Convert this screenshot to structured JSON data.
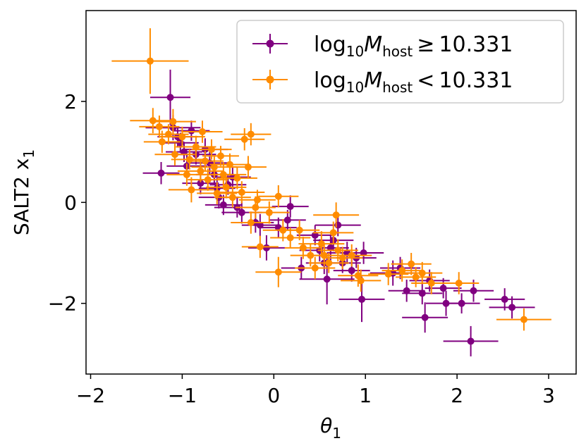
{
  "chart_data": {
    "type": "scatter",
    "title": "",
    "xlabel": "θ",
    "xlabel_sub": "1",
    "ylabel": "SALT2 x",
    "ylabel_sub": "1",
    "xlim": [
      -2.05,
      3.3
    ],
    "ylim": [
      -3.4,
      3.8
    ],
    "xticks": [
      -2,
      -1,
      0,
      1,
      2,
      3
    ],
    "xtick_labels": [
      "−2",
      "−1",
      "0",
      "1",
      "2",
      "3"
    ],
    "yticks": [
      -2,
      0,
      2
    ],
    "ytick_labels": [
      "−2",
      "0",
      "2"
    ],
    "legend_position": "top-right",
    "grid": false,
    "series": [
      {
        "name": "log10 Mhost ≥ 10.331",
        "legend": {
          "log": "log",
          "sub10": "10",
          "m": "M",
          "host": "host",
          "op": "≥",
          "value": "10.331"
        },
        "color": "#800080",
        "points": [
          [
            -1.13,
            2.08,
            0.22,
            0.55
          ],
          [
            -1.23,
            0.58,
            0.2,
            0.22
          ],
          [
            -1.1,
            1.48,
            0.3,
            0.25
          ],
          [
            -1.05,
            1.3,
            0.22,
            0.2
          ],
          [
            -1.02,
            1.18,
            0.2,
            0.2
          ],
          [
            -0.98,
            1.0,
            0.2,
            0.2
          ],
          [
            -0.95,
            0.72,
            0.22,
            0.22
          ],
          [
            -0.9,
            1.42,
            0.2,
            0.2
          ],
          [
            -0.85,
            0.95,
            0.22,
            0.2
          ],
          [
            -0.8,
            0.38,
            0.2,
            0.22
          ],
          [
            -0.75,
            1.05,
            0.25,
            0.22
          ],
          [
            -0.7,
            0.78,
            0.22,
            0.22
          ],
          [
            -0.65,
            0.55,
            0.2,
            0.2
          ],
          [
            -0.62,
            0.28,
            0.2,
            0.2
          ],
          [
            -0.6,
            0.1,
            0.22,
            0.22
          ],
          [
            -0.55,
            -0.05,
            0.2,
            0.2
          ],
          [
            -0.5,
            0.35,
            0.2,
            0.2
          ],
          [
            -0.45,
            0.5,
            0.2,
            0.2
          ],
          [
            -0.4,
            -0.1,
            0.25,
            0.2
          ],
          [
            -0.35,
            -0.2,
            0.22,
            0.22
          ],
          [
            -0.2,
            -0.4,
            0.2,
            0.2
          ],
          [
            -0.15,
            -0.45,
            0.2,
            0.22
          ],
          [
            -0.08,
            -0.9,
            0.2,
            0.25
          ],
          [
            0.05,
            -0.5,
            0.2,
            0.2
          ],
          [
            0.15,
            -0.35,
            0.2,
            0.2
          ],
          [
            0.18,
            -0.08,
            0.2,
            0.22
          ],
          [
            0.3,
            -1.3,
            0.22,
            0.22
          ],
          [
            0.45,
            -0.65,
            0.2,
            0.2
          ],
          [
            0.5,
            -0.95,
            0.22,
            0.22
          ],
          [
            0.55,
            -1.2,
            0.2,
            0.22
          ],
          [
            0.58,
            -1.52,
            0.3,
            0.5
          ],
          [
            0.62,
            -0.9,
            0.2,
            0.25
          ],
          [
            0.65,
            -0.75,
            0.22,
            0.22
          ],
          [
            0.7,
            -0.45,
            0.25,
            0.22
          ],
          [
            0.75,
            -1.2,
            0.2,
            0.2
          ],
          [
            0.8,
            -1.0,
            0.22,
            0.22
          ],
          [
            0.85,
            -1.35,
            0.2,
            0.22
          ],
          [
            0.9,
            -1.1,
            0.22,
            0.2
          ],
          [
            0.96,
            -1.92,
            0.25,
            0.45
          ],
          [
            0.98,
            -1.0,
            0.22,
            0.22
          ],
          [
            1.3,
            -1.4,
            0.25,
            0.25
          ],
          [
            1.38,
            -1.3,
            0.22,
            0.22
          ],
          [
            1.45,
            -1.75,
            0.2,
            0.22
          ],
          [
            1.62,
            -1.8,
            0.22,
            0.22
          ],
          [
            1.65,
            -2.28,
            0.25,
            0.3
          ],
          [
            1.7,
            -1.55,
            0.22,
            0.22
          ],
          [
            1.85,
            -1.7,
            0.2,
            0.2
          ],
          [
            1.88,
            -2.0,
            0.22,
            0.25
          ],
          [
            2.05,
            -2.0,
            0.2,
            0.2
          ],
          [
            2.18,
            -1.75,
            0.22,
            0.22
          ],
          [
            2.15,
            -2.75,
            0.3,
            0.3
          ],
          [
            2.52,
            -1.92,
            0.22,
            0.22
          ],
          [
            2.6,
            -2.08,
            0.25,
            0.22
          ]
        ]
      },
      {
        "name": "log10 Mhost < 10.331",
        "legend": {
          "log": "log",
          "sub10": "10",
          "m": "M",
          "host": "host",
          "op": "<",
          "value": "10.331"
        },
        "color": "#ff8c00",
        "points": [
          [
            -1.35,
            2.8,
            0.42,
            0.65
          ],
          [
            -1.32,
            1.62,
            0.25,
            0.25
          ],
          [
            -1.25,
            1.5,
            0.22,
            0.22
          ],
          [
            -1.22,
            1.2,
            0.2,
            0.22
          ],
          [
            -1.15,
            1.35,
            0.22,
            0.2
          ],
          [
            -1.1,
            1.6,
            0.25,
            0.25
          ],
          [
            -1.08,
            0.95,
            0.22,
            0.22
          ],
          [
            -1.0,
            1.3,
            0.25,
            0.2
          ],
          [
            -0.95,
            0.55,
            0.22,
            0.22
          ],
          [
            -0.92,
            0.85,
            0.2,
            0.2
          ],
          [
            -0.9,
            0.25,
            0.25,
            0.25
          ],
          [
            -0.85,
            1.1,
            0.22,
            0.22
          ],
          [
            -0.8,
            0.62,
            0.25,
            0.22
          ],
          [
            -0.78,
            1.4,
            0.22,
            0.22
          ],
          [
            -0.75,
            0.82,
            0.2,
            0.2
          ],
          [
            -0.72,
            0.45,
            0.22,
            0.22
          ],
          [
            -0.68,
            1.05,
            0.22,
            0.2
          ],
          [
            -0.65,
            0.7,
            0.25,
            0.22
          ],
          [
            -0.62,
            0.18,
            0.22,
            0.22
          ],
          [
            -0.58,
            0.92,
            0.2,
            0.2
          ],
          [
            -0.55,
            0.55,
            0.25,
            0.25
          ],
          [
            -0.52,
            0.3,
            0.22,
            0.22
          ],
          [
            -0.48,
            0.75,
            0.22,
            0.22
          ],
          [
            -0.45,
            0.1,
            0.2,
            0.2
          ],
          [
            -0.4,
            0.48,
            0.22,
            0.22
          ],
          [
            -0.35,
            0.2,
            0.25,
            0.22
          ],
          [
            -0.32,
            1.25,
            0.22,
            0.22
          ],
          [
            -0.28,
            0.7,
            0.2,
            0.22
          ],
          [
            -0.25,
            1.35,
            0.22,
            0.22
          ],
          [
            -0.2,
            -0.1,
            0.22,
            0.22
          ],
          [
            -0.18,
            0.05,
            0.2,
            0.2
          ],
          [
            -0.25,
            -0.4,
            0.22,
            0.22
          ],
          [
            -0.15,
            -0.88,
            0.2,
            0.22
          ],
          [
            -0.05,
            -0.2,
            0.22,
            0.22
          ],
          [
            0.05,
            0.12,
            0.22,
            0.22
          ],
          [
            0.05,
            -1.38,
            0.25,
            0.3
          ],
          [
            0.1,
            -0.55,
            0.22,
            0.22
          ],
          [
            0.18,
            -0.7,
            0.22,
            0.2
          ],
          [
            0.28,
            -0.55,
            0.22,
            0.2
          ],
          [
            0.32,
            -0.9,
            0.2,
            0.22
          ],
          [
            0.4,
            -1.05,
            0.22,
            0.22
          ],
          [
            0.45,
            -1.3,
            0.22,
            0.22
          ],
          [
            0.52,
            -0.82,
            0.25,
            0.25
          ],
          [
            0.55,
            -1.05,
            0.22,
            0.22
          ],
          [
            0.6,
            -1.2,
            0.22,
            0.2
          ],
          [
            0.65,
            -0.6,
            0.22,
            0.22
          ],
          [
            0.68,
            -0.25,
            0.25,
            0.25
          ],
          [
            0.7,
            -0.95,
            0.22,
            0.22
          ],
          [
            0.75,
            -1.1,
            0.22,
            0.22
          ],
          [
            0.85,
            -1.05,
            0.22,
            0.22
          ],
          [
            0.92,
            -1.45,
            0.22,
            0.22
          ],
          [
            0.95,
            -1.55,
            0.22,
            0.22
          ],
          [
            1.25,
            -1.42,
            0.22,
            0.22
          ],
          [
            1.4,
            -1.35,
            0.22,
            0.22
          ],
          [
            1.5,
            -1.22,
            0.22,
            0.22
          ],
          [
            1.55,
            -1.48,
            0.22,
            0.2
          ],
          [
            1.62,
            -1.4,
            0.22,
            0.22
          ],
          [
            1.72,
            -1.6,
            0.22,
            0.22
          ],
          [
            2.02,
            -1.6,
            0.22,
            0.22
          ],
          [
            2.73,
            -2.32,
            0.3,
            0.22
          ]
        ]
      }
    ]
  }
}
